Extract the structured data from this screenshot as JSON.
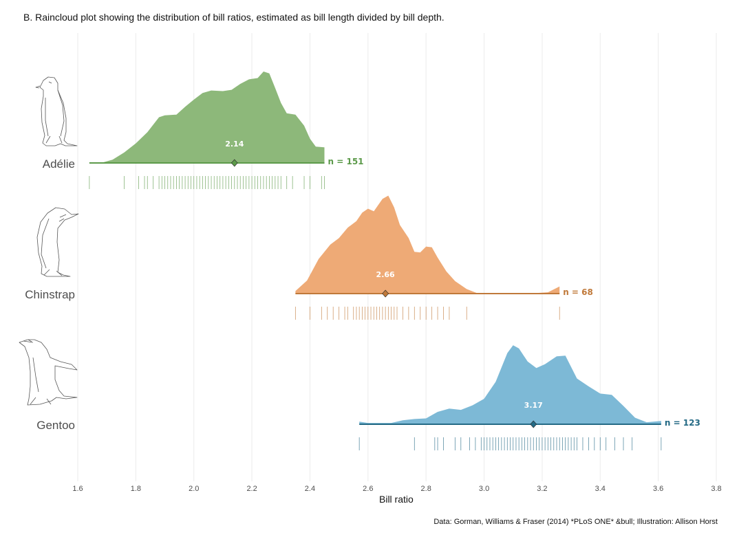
{
  "chart_data": {
    "type": "raincloud",
    "title": "B. Raincloud plot showing the distribution of bill ratios, estimated as bill length divided by bill depth.",
    "xlabel": "Bill ratio",
    "ylabel": "",
    "xlim": [
      1.6,
      3.8
    ],
    "x_ticks": [
      1.6,
      1.8,
      2.0,
      2.2,
      2.4,
      2.6,
      2.8,
      3.0,
      3.2,
      3.4,
      3.6,
      3.8
    ],
    "x_tick_labels": [
      "1.6",
      "1.8",
      "2.0",
      "2.2",
      "2.4",
      "2.6",
      "2.8",
      "3.0",
      "3.2",
      "3.4",
      "3.6",
      "3.8"
    ],
    "grid": "vertical major",
    "caption": "Data: Gorman, Williams & Fraser (2014) *PLoS ONE* &bull; Illustration: Allison Horst",
    "series": [
      {
        "name": "Adélie",
        "color": "#5c9a4a",
        "fill": "#8db87a",
        "mean": 2.14,
        "mean_label": "2.14",
        "n_label": "n = 151",
        "range": [
          1.64,
          2.45
        ],
        "density_x": [
          1.64,
          1.68,
          1.72,
          1.76,
          1.8,
          1.84,
          1.88,
          1.9,
          1.94,
          1.97,
          2.0,
          2.03,
          2.06,
          2.1,
          2.13,
          2.16,
          2.19,
          2.22,
          2.24,
          2.26,
          2.28,
          2.3,
          2.32,
          2.35,
          2.38,
          2.4,
          2.42,
          2.45
        ],
        "density_y": [
          0.01,
          0.0,
          0.05,
          0.16,
          0.3,
          0.47,
          0.7,
          0.73,
          0.74,
          0.86,
          0.97,
          1.07,
          1.11,
          1.1,
          1.12,
          1.21,
          1.28,
          1.3,
          1.4,
          1.37,
          1.15,
          0.92,
          0.76,
          0.74,
          0.57,
          0.37,
          0.25,
          0.24
        ],
        "observations": [
          1.64,
          1.76,
          1.81,
          1.83,
          1.84,
          1.86,
          1.88,
          1.89,
          1.9,
          1.91,
          1.92,
          1.93,
          1.94,
          1.95,
          1.96,
          1.97,
          1.98,
          1.99,
          2.0,
          2.01,
          2.02,
          2.03,
          2.04,
          2.05,
          2.06,
          2.07,
          2.08,
          2.09,
          2.1,
          2.11,
          2.12,
          2.13,
          2.14,
          2.15,
          2.16,
          2.17,
          2.18,
          2.19,
          2.2,
          2.21,
          2.22,
          2.23,
          2.24,
          2.25,
          2.26,
          2.27,
          2.28,
          2.29,
          2.3,
          2.32,
          2.34,
          2.38,
          2.4,
          2.44,
          2.45
        ]
      },
      {
        "name": "Chinstrap",
        "color": "#c0793a",
        "fill": "#eeaa76",
        "mean": 2.66,
        "mean_label": "2.66",
        "n_label": "n = 68",
        "range": [
          2.35,
          3.26
        ],
        "density_x": [
          2.35,
          2.39,
          2.43,
          2.47,
          2.5,
          2.53,
          2.56,
          2.58,
          2.6,
          2.62,
          2.65,
          2.67,
          2.69,
          2.71,
          2.74,
          2.76,
          2.78,
          2.8,
          2.82,
          2.84,
          2.87,
          2.9,
          2.94,
          2.98,
          3.05,
          3.15,
          3.22,
          3.26
        ],
        "density_y": [
          0.04,
          0.2,
          0.53,
          0.75,
          0.85,
          1.01,
          1.11,
          1.24,
          1.3,
          1.26,
          1.45,
          1.5,
          1.32,
          1.05,
          0.85,
          0.64,
          0.63,
          0.72,
          0.71,
          0.55,
          0.34,
          0.19,
          0.07,
          0.0,
          0.0,
          0.0,
          0.02,
          0.11
        ],
        "observations": [
          2.35,
          2.4,
          2.44,
          2.46,
          2.48,
          2.5,
          2.52,
          2.53,
          2.55,
          2.56,
          2.57,
          2.58,
          2.59,
          2.6,
          2.61,
          2.62,
          2.63,
          2.64,
          2.65,
          2.66,
          2.67,
          2.68,
          2.69,
          2.7,
          2.72,
          2.74,
          2.76,
          2.78,
          2.8,
          2.82,
          2.84,
          2.86,
          2.88,
          2.94,
          3.26
        ]
      },
      {
        "name": "Gentoo",
        "color": "#246a85",
        "fill": "#7db9d6",
        "mean": 3.17,
        "mean_label": "3.17",
        "n_label": "n = 123",
        "range": [
          2.57,
          3.61
        ],
        "density_x": [
          2.57,
          2.6,
          2.64,
          2.68,
          2.72,
          2.76,
          2.8,
          2.84,
          2.88,
          2.92,
          2.96,
          3.0,
          3.04,
          3.08,
          3.1,
          3.12,
          3.15,
          3.18,
          3.21,
          3.25,
          3.28,
          3.32,
          3.36,
          3.4,
          3.44,
          3.48,
          3.52,
          3.56,
          3.61
        ],
        "density_y": [
          0.04,
          0.02,
          0.02,
          0.02,
          0.06,
          0.08,
          0.09,
          0.19,
          0.24,
          0.22,
          0.29,
          0.39,
          0.65,
          1.09,
          1.21,
          1.16,
          0.96,
          0.86,
          0.92,
          1.04,
          1.05,
          0.7,
          0.58,
          0.47,
          0.45,
          0.28,
          0.1,
          0.03,
          0.05
        ],
        "observations": [
          2.57,
          2.76,
          2.83,
          2.84,
          2.86,
          2.9,
          2.92,
          2.95,
          2.97,
          2.99,
          3.0,
          3.01,
          3.02,
          3.03,
          3.04,
          3.05,
          3.06,
          3.07,
          3.08,
          3.09,
          3.1,
          3.11,
          3.12,
          3.13,
          3.14,
          3.15,
          3.16,
          3.17,
          3.18,
          3.19,
          3.2,
          3.21,
          3.22,
          3.23,
          3.24,
          3.25,
          3.26,
          3.27,
          3.28,
          3.29,
          3.3,
          3.31,
          3.32,
          3.34,
          3.36,
          3.38,
          3.4,
          3.42,
          3.45,
          3.48,
          3.51,
          3.61
        ]
      }
    ]
  }
}
